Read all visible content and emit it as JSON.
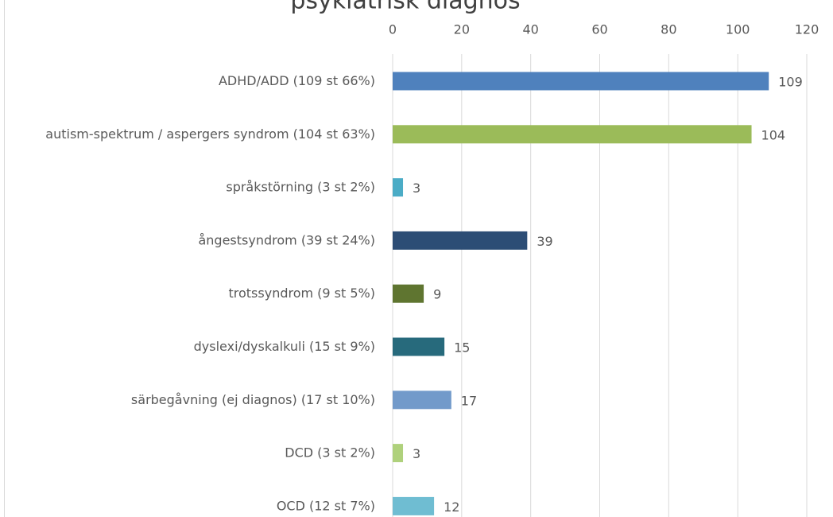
{
  "chart_data": {
    "type": "bar",
    "orientation": "horizontal",
    "title": "psykiatrisk diagnos",
    "categories": [
      "ADHD/ADD (109 st 66%)",
      "autism-spektrum / aspergers syndrom (104 st 63%)",
      "språkstörning (3 st 2%)",
      "ångestsyndrom (39 st 24%)",
      "trotssyndrom (9 st 5%)",
      "dyslexi/dyskalkuli (15 st 9%)",
      "särbegåvning (ej diagnos) (17 st 10%)",
      "DCD (3 st 2%)",
      "OCD (12 st 7%)"
    ],
    "values": [
      109,
      104,
      3,
      39,
      9,
      15,
      17,
      3,
      12
    ],
    "colors": [
      "#4f81bd",
      "#9bbb59",
      "#4bacc6",
      "#2c4d75",
      "#5f7530",
      "#276a7c",
      "#729aca",
      "#afd17c",
      "#6fbdd2"
    ],
    "xlim": [
      0,
      120
    ],
    "xticks": [
      0,
      20,
      40,
      60,
      80,
      100,
      120
    ],
    "grid": true
  }
}
